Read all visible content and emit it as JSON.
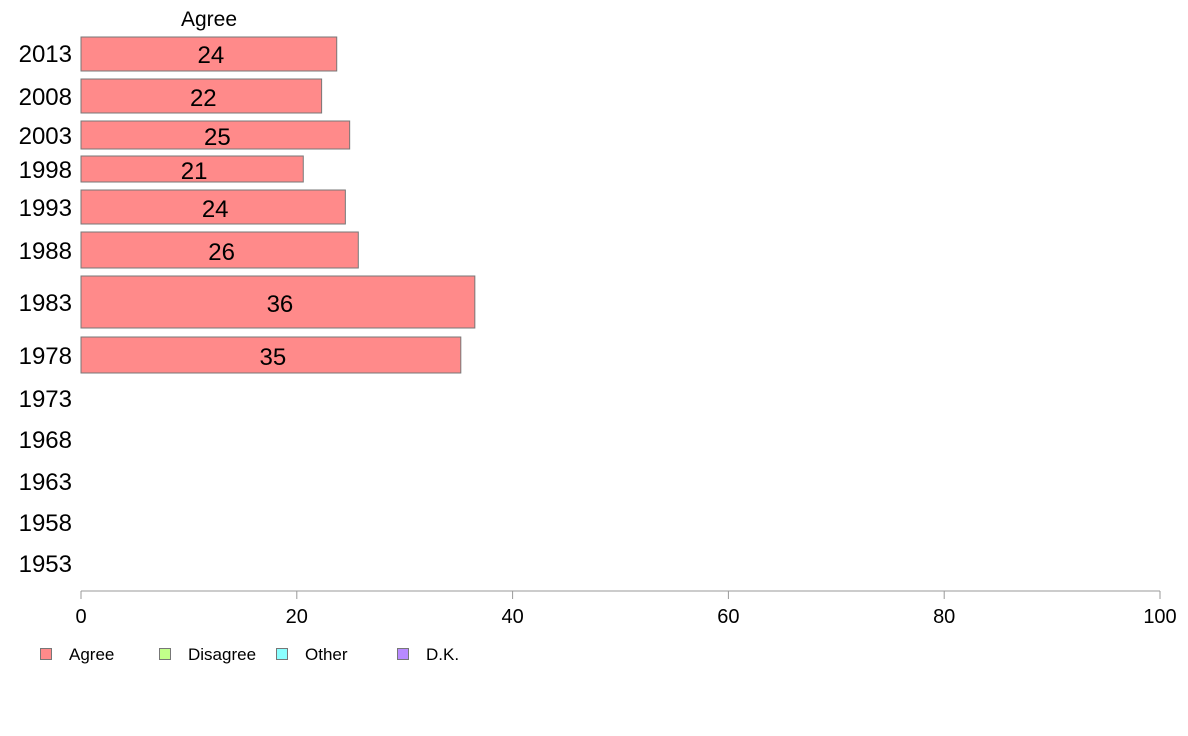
{
  "chart_data": {
    "type": "bar",
    "orientation": "horizontal",
    "title": "Agree",
    "categories": [
      "2013",
      "2008",
      "2003",
      "1998",
      "1993",
      "1988",
      "1983",
      "1978",
      "1973",
      "1968",
      "1963",
      "1958",
      "1953"
    ],
    "series": [
      {
        "name": "Agree",
        "color": "#ff8a8a",
        "values": [
          24,
          22,
          25,
          21,
          24,
          26,
          36,
          35,
          null,
          null,
          null,
          null,
          null
        ],
        "exact_values": [
          23.7,
          22.3,
          24.9,
          20.6,
          24.5,
          25.7,
          36.5,
          35.2,
          null,
          null,
          null,
          null,
          null
        ]
      }
    ],
    "xlim": [
      0,
      100
    ],
    "xticks": [
      0,
      20,
      40,
      60,
      80,
      100
    ],
    "grid": false,
    "legend_position": "bottom-left"
  },
  "legend": [
    {
      "label": "Agree",
      "color": "#ff8a8a"
    },
    {
      "label": "Disagree",
      "color": "#c2ff8a"
    },
    {
      "label": "Other",
      "color": "#8affff"
    },
    {
      "label": "D.K.",
      "color": "#b88aff"
    }
  ]
}
